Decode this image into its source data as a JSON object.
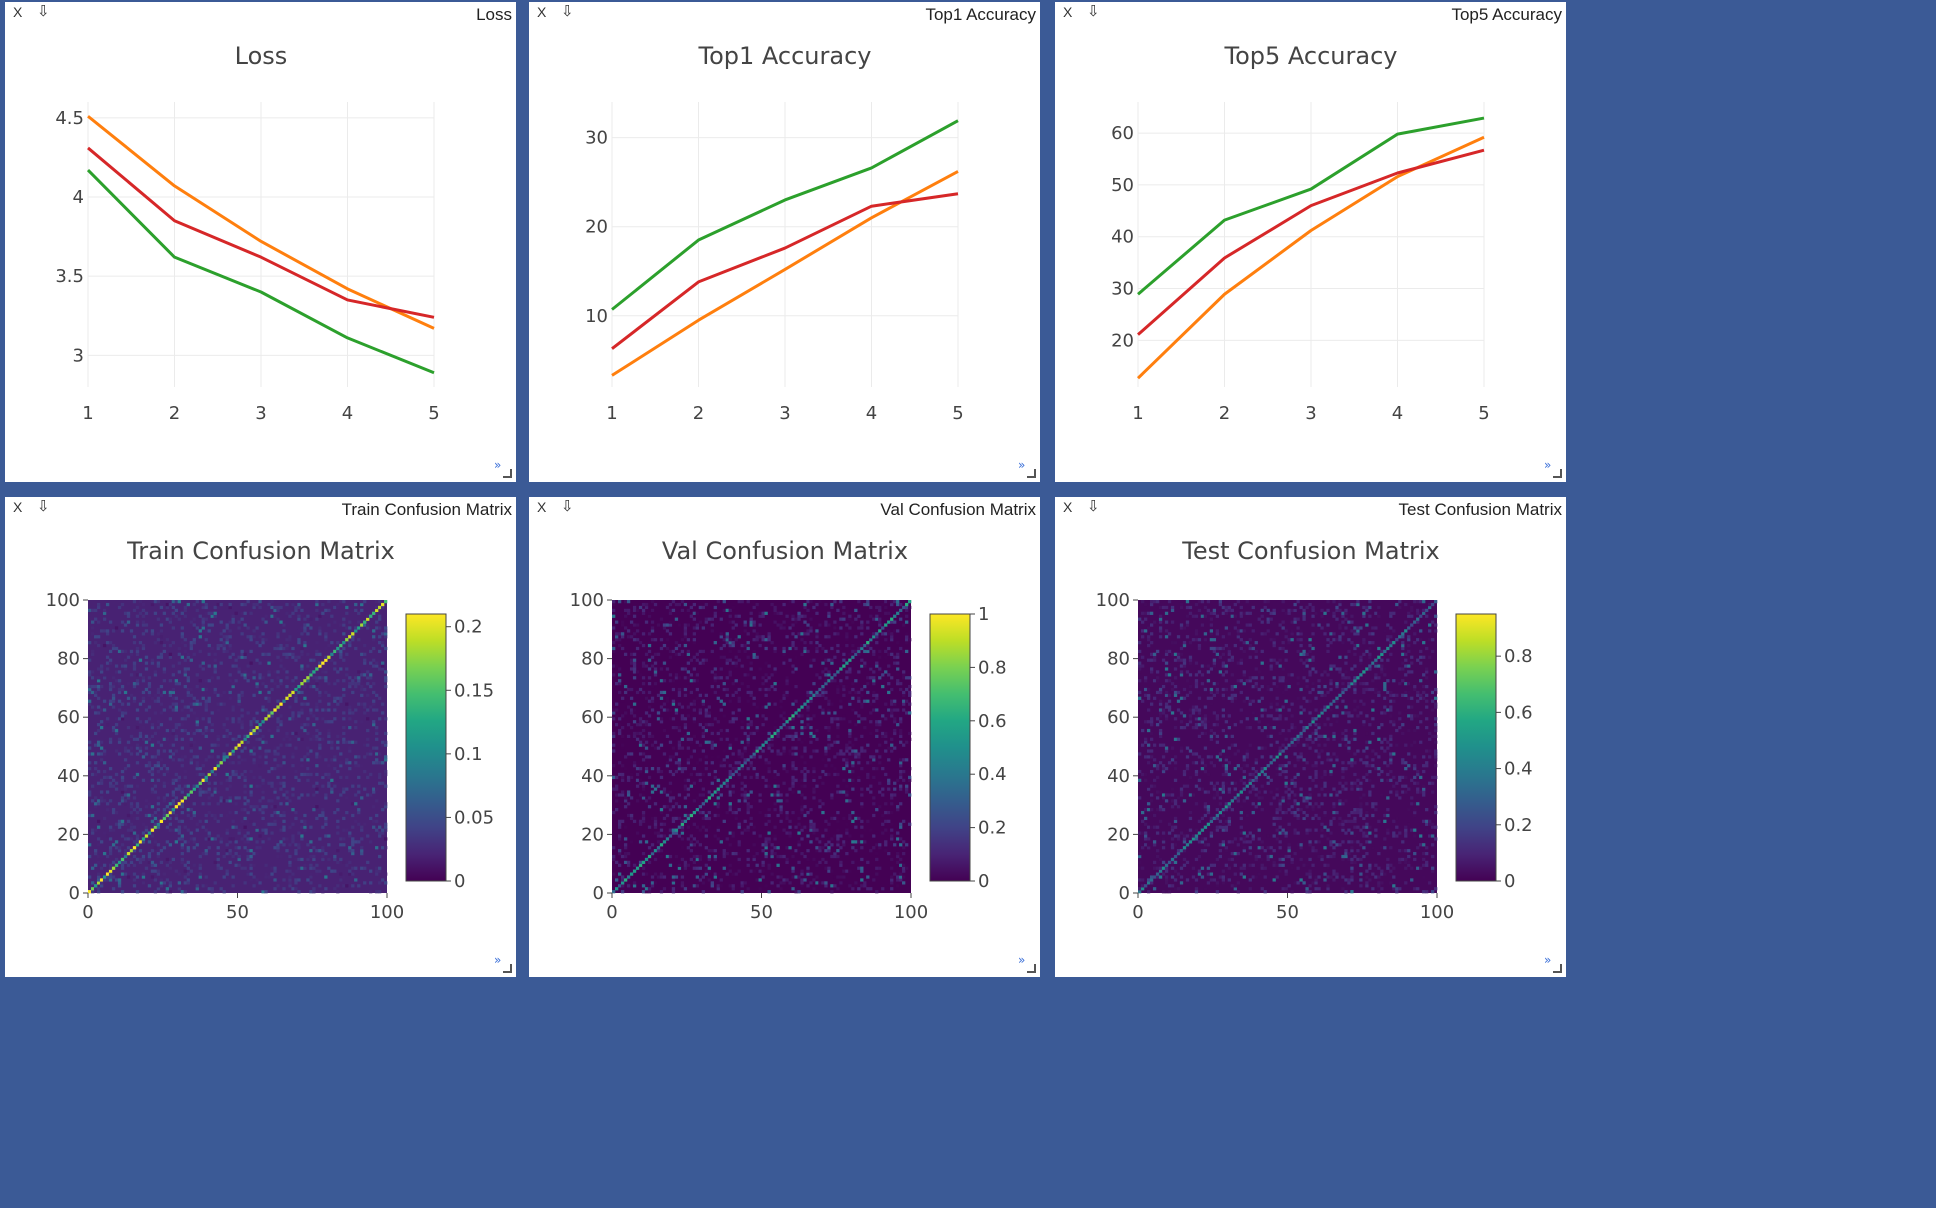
{
  "colors": {
    "background": "#3b5a96",
    "series": [
      "#ff7f0e",
      "#d62728",
      "#2ca02c"
    ],
    "grid": "#ebebeb",
    "viridis": [
      "#440154",
      "#3b528b",
      "#21918c",
      "#5ec962",
      "#fde725"
    ]
  },
  "icons": {
    "close": "X",
    "save": "⇩",
    "resize": "»"
  },
  "panes": [
    {
      "label": "Loss",
      "chart_data": {
        "type": "line",
        "title": "Loss",
        "x": [
          1,
          2,
          3,
          4,
          5
        ],
        "xticks": [
          "1",
          "2",
          "3",
          "4",
          "5"
        ],
        "ylim": [
          2.8,
          4.6
        ],
        "yticks": [
          3,
          3.5,
          4,
          4.5
        ],
        "yticklabels": [
          "3",
          "3.5",
          "4",
          "4.5"
        ],
        "series": [
          {
            "color": "#ff7f0e",
            "values": [
              4.51,
              4.07,
              3.72,
              3.42,
              3.17
            ]
          },
          {
            "color": "#d62728",
            "values": [
              4.31,
              3.85,
              3.62,
              3.35,
              3.24
            ]
          },
          {
            "color": "#2ca02c",
            "values": [
              4.17,
              3.62,
              3.4,
              3.11,
              2.89
            ]
          }
        ]
      }
    },
    {
      "label": "Top1 Accuracy",
      "chart_data": {
        "type": "line",
        "title": "Top1 Accuracy",
        "x": [
          1,
          2,
          3,
          4,
          5
        ],
        "xticks": [
          "1",
          "2",
          "3",
          "4",
          "5"
        ],
        "ylim": [
          2,
          34
        ],
        "yticks": [
          10,
          20,
          30
        ],
        "yticklabels": [
          "10",
          "20",
          "30"
        ],
        "series": [
          {
            "color": "#ff7f0e",
            "values": [
              3.3,
              9.5,
              15.2,
              21.0,
              26.2
            ]
          },
          {
            "color": "#d62728",
            "values": [
              6.3,
              13.8,
              17.6,
              22.3,
              23.7
            ]
          },
          {
            "color": "#2ca02c",
            "values": [
              10.7,
              18.5,
              23.0,
              26.6,
              31.9
            ]
          }
        ]
      }
    },
    {
      "label": "Top5 Accuracy",
      "chart_data": {
        "type": "line",
        "title": "Top5 Accuracy",
        "x": [
          1,
          2,
          3,
          4,
          5
        ],
        "xticks": [
          "1",
          "2",
          "3",
          "4",
          "5"
        ],
        "ylim": [
          11,
          66
        ],
        "yticks": [
          20,
          30,
          40,
          50,
          60
        ],
        "yticklabels": [
          "20",
          "30",
          "40",
          "50",
          "60"
        ],
        "series": [
          {
            "color": "#ff7f0e",
            "values": [
              12.7,
              28.9,
              41.2,
              51.6,
              59.2
            ]
          },
          {
            "color": "#d62728",
            "values": [
              21.1,
              35.9,
              46.0,
              52.3,
              56.7
            ]
          },
          {
            "color": "#2ca02c",
            "values": [
              28.9,
              43.2,
              49.2,
              59.8,
              62.9
            ]
          }
        ]
      }
    },
    {
      "label": "Train Confusion Matrix",
      "chart_data": {
        "type": "heatmap",
        "title": "Train Confusion Matrix",
        "xlim": [
          0,
          100
        ],
        "ylim": [
          0,
          100
        ],
        "xticks": [
          "0",
          "50",
          "100"
        ],
        "yticks": [
          "0",
          "20",
          "40",
          "60",
          "80",
          "100"
        ],
        "zmin": 0,
        "zmax": 0.21,
        "colorbar_ticks": [
          0,
          0.05,
          0.1,
          0.15,
          0.2
        ],
        "colorbar_ticklabels": [
          "0",
          "0.05",
          "0.1",
          "0.15",
          "0.2"
        ],
        "diagonal_level": 0.16,
        "background_level": 0.02
      }
    },
    {
      "label": "Val Confusion Matrix",
      "chart_data": {
        "type": "heatmap",
        "title": "Val Confusion Matrix",
        "xlim": [
          0,
          100
        ],
        "ylim": [
          0,
          100
        ],
        "xticks": [
          "0",
          "50",
          "100"
        ],
        "yticks": [
          "0",
          "20",
          "40",
          "60",
          "80",
          "100"
        ],
        "zmin": 0,
        "zmax": 1.0,
        "colorbar_ticks": [
          0,
          0.2,
          0.4,
          0.6,
          0.8,
          1
        ],
        "colorbar_ticklabels": [
          "0",
          "0.2",
          "0.4",
          "0.6",
          "0.8",
          "1"
        ],
        "diagonal_level": 0.45,
        "background_level": 0.0
      }
    },
    {
      "label": "Test Confusion Matrix",
      "chart_data": {
        "type": "heatmap",
        "title": "Test Confusion Matrix",
        "xlim": [
          0,
          100
        ],
        "ylim": [
          0,
          100
        ],
        "xticks": [
          "0",
          "50",
          "100"
        ],
        "yticks": [
          "0",
          "20",
          "40",
          "60",
          "80",
          "100"
        ],
        "zmin": 0,
        "zmax": 0.95,
        "colorbar_ticks": [
          0,
          0.2,
          0.4,
          0.6,
          0.8
        ],
        "colorbar_ticklabels": [
          "0",
          "0.2",
          "0.4",
          "0.6",
          "0.8"
        ],
        "diagonal_level": 0.35,
        "background_level": 0.02
      }
    }
  ]
}
